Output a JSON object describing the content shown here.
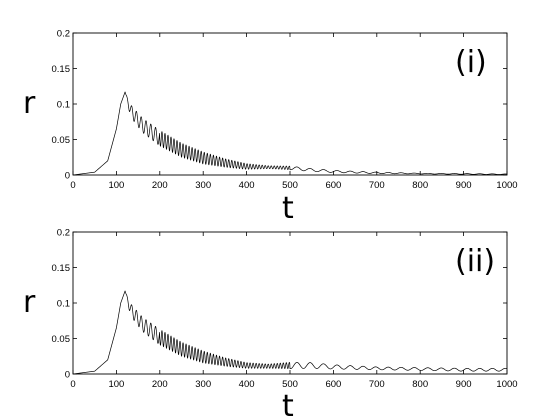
{
  "chart_data": [
    {
      "type": "line",
      "panel_label": "(i)",
      "xlabel": "t",
      "ylabel": "r",
      "xlim": [
        0,
        1000
      ],
      "ylim": [
        0,
        0.2
      ],
      "xticks": [
        "0",
        "100",
        "200",
        "300",
        "400",
        "500",
        "600",
        "700",
        "800",
        "900",
        "1000"
      ],
      "yticks": [
        "0",
        "0.05",
        "0.1",
        "0.15",
        "0.2"
      ],
      "grid": false,
      "series": [
        {
          "x": [
            0,
            50,
            80,
            100,
            110,
            120,
            130,
            140,
            160,
            200,
            250,
            300,
            350,
            400,
            450,
            500,
            550,
            600,
            700,
            800,
            900,
            1000
          ],
          "y": [
            0,
            0.004,
            0.02,
            0.065,
            0.1,
            0.117,
            0.095,
            0.085,
            0.07,
            0.052,
            0.035,
            0.024,
            0.017,
            0.012,
            0.011,
            0.01,
            0.007,
            0.005,
            0.003,
            0.002,
            0.0015,
            0.001
          ],
          "osc": [
            0,
            0,
            0,
            0,
            0,
            0,
            0.012,
            0.018,
            0.02,
            0.022,
            0.02,
            0.017,
            0.012,
            0.008,
            0.004,
            0.005,
            0.004,
            0.003,
            0.002,
            0.001,
            0.001,
            0.0008
          ]
        }
      ]
    },
    {
      "type": "line",
      "panel_label": "(ii)",
      "xlabel": "t",
      "ylabel": "r",
      "xlim": [
        0,
        1000
      ],
      "ylim": [
        0,
        0.2
      ],
      "xticks": [
        "0",
        "100",
        "200",
        "300",
        "400",
        "500",
        "600",
        "700",
        "800",
        "900",
        "1000"
      ],
      "yticks": [
        "0",
        "0.05",
        "0.1",
        "0.15",
        "0.2"
      ],
      "grid": false,
      "series": [
        {
          "x": [
            0,
            50,
            80,
            100,
            110,
            120,
            130,
            140,
            160,
            200,
            250,
            300,
            350,
            400,
            450,
            500,
            550,
            600,
            650,
            700,
            800,
            900,
            1000
          ],
          "y": [
            0,
            0.004,
            0.02,
            0.065,
            0.1,
            0.117,
            0.095,
            0.085,
            0.07,
            0.052,
            0.035,
            0.024,
            0.017,
            0.012,
            0.011,
            0.012,
            0.012,
            0.01,
            0.009,
            0.008,
            0.007,
            0.006,
            0.006
          ],
          "osc": [
            0,
            0,
            0,
            0,
            0,
            0,
            0.012,
            0.018,
            0.02,
            0.022,
            0.02,
            0.017,
            0.012,
            0.008,
            0.006,
            0.009,
            0.008,
            0.006,
            0.005,
            0.004,
            0.004,
            0.004,
            0.004
          ]
        }
      ]
    }
  ]
}
